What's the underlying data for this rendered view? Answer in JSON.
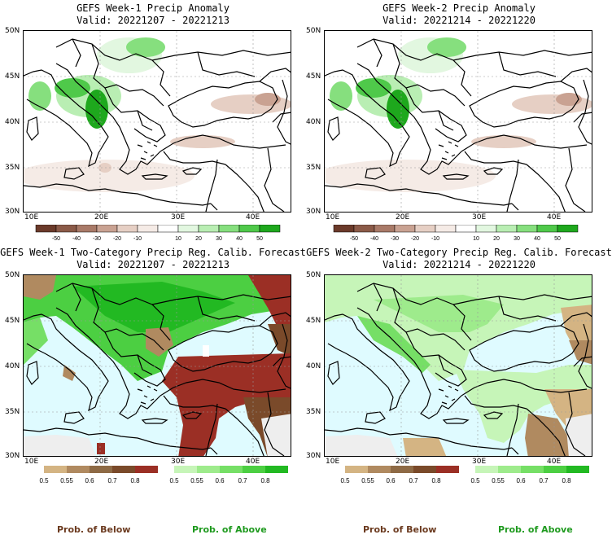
{
  "panels": [
    {
      "title_line1": "GEFS Week-1 Precip Anomaly",
      "title_line2": "Valid: 20221207 - 20221213",
      "lat_ticks": [
        "50N",
        "45N",
        "40N",
        "35N",
        "30N"
      ],
      "lon_ticks": [
        "10E",
        "20E",
        "30E",
        "40E"
      ]
    },
    {
      "title_line1": "GEFS Week-2 Precip Anomaly",
      "title_line2": "Valid: 20221214 - 20221220",
      "lat_ticks": [
        "50N",
        "45N",
        "40N",
        "35N",
        "30N"
      ],
      "lon_ticks": [
        "10E",
        "20E",
        "30E",
        "40E"
      ]
    },
    {
      "title_line1": "GEFS Week-1 Two-Category Precip Reg. Calib. Forecast",
      "title_line2": "Valid: 20221207 - 20221213",
      "lat_ticks": [
        "50N",
        "45N",
        "40N",
        "35N",
        "30N"
      ],
      "lon_ticks": [
        "10E",
        "20E",
        "30E",
        "40E"
      ]
    },
    {
      "title_line1": "GEFS Week-2 Two-Category Precip Reg. Calib. Forecast",
      "title_line2": "Valid: 20221214 - 20221220",
      "lat_ticks": [
        "50N",
        "45N",
        "40N",
        "35N",
        "30N"
      ],
      "lon_ticks": [
        "10E",
        "20E",
        "30E",
        "40E"
      ]
    }
  ],
  "anomaly_colorbar": {
    "labels": [
      "-50",
      "-40",
      "-30",
      "-20",
      "-10",
      "10",
      "20",
      "30",
      "40",
      "50"
    ],
    "colors": [
      "#6b3a2a",
      "#8b5a48",
      "#a97a68",
      "#c9a292",
      "#e6cfc4",
      "#f5ebe6",
      "#ffffff",
      "#e2f7e0",
      "#b9eeb3",
      "#86df7e",
      "#4fc94a",
      "#1ea81d"
    ]
  },
  "prob_colorbars": {
    "below_labels": [
      "0.5",
      "0.55",
      "0.6",
      "0.7",
      "0.8"
    ],
    "below_colors": [
      "#d4b483",
      "#b08a60",
      "#8e6a45",
      "#7a4a2a",
      "#9b2f25"
    ],
    "above_labels": [
      "0.5",
      "0.55",
      "0.6",
      "0.7",
      "0.8"
    ],
    "above_colors": [
      "#c6f5b8",
      "#9eeb8c",
      "#76df66",
      "#4ccf42",
      "#22b922"
    ]
  },
  "legend": {
    "below_label": "Prob. of Below",
    "above_label": "Prob. of Above",
    "below_color": "#6b3a1f",
    "above_color": "#1f9a1f"
  },
  "sea_color": "#dffbff"
}
